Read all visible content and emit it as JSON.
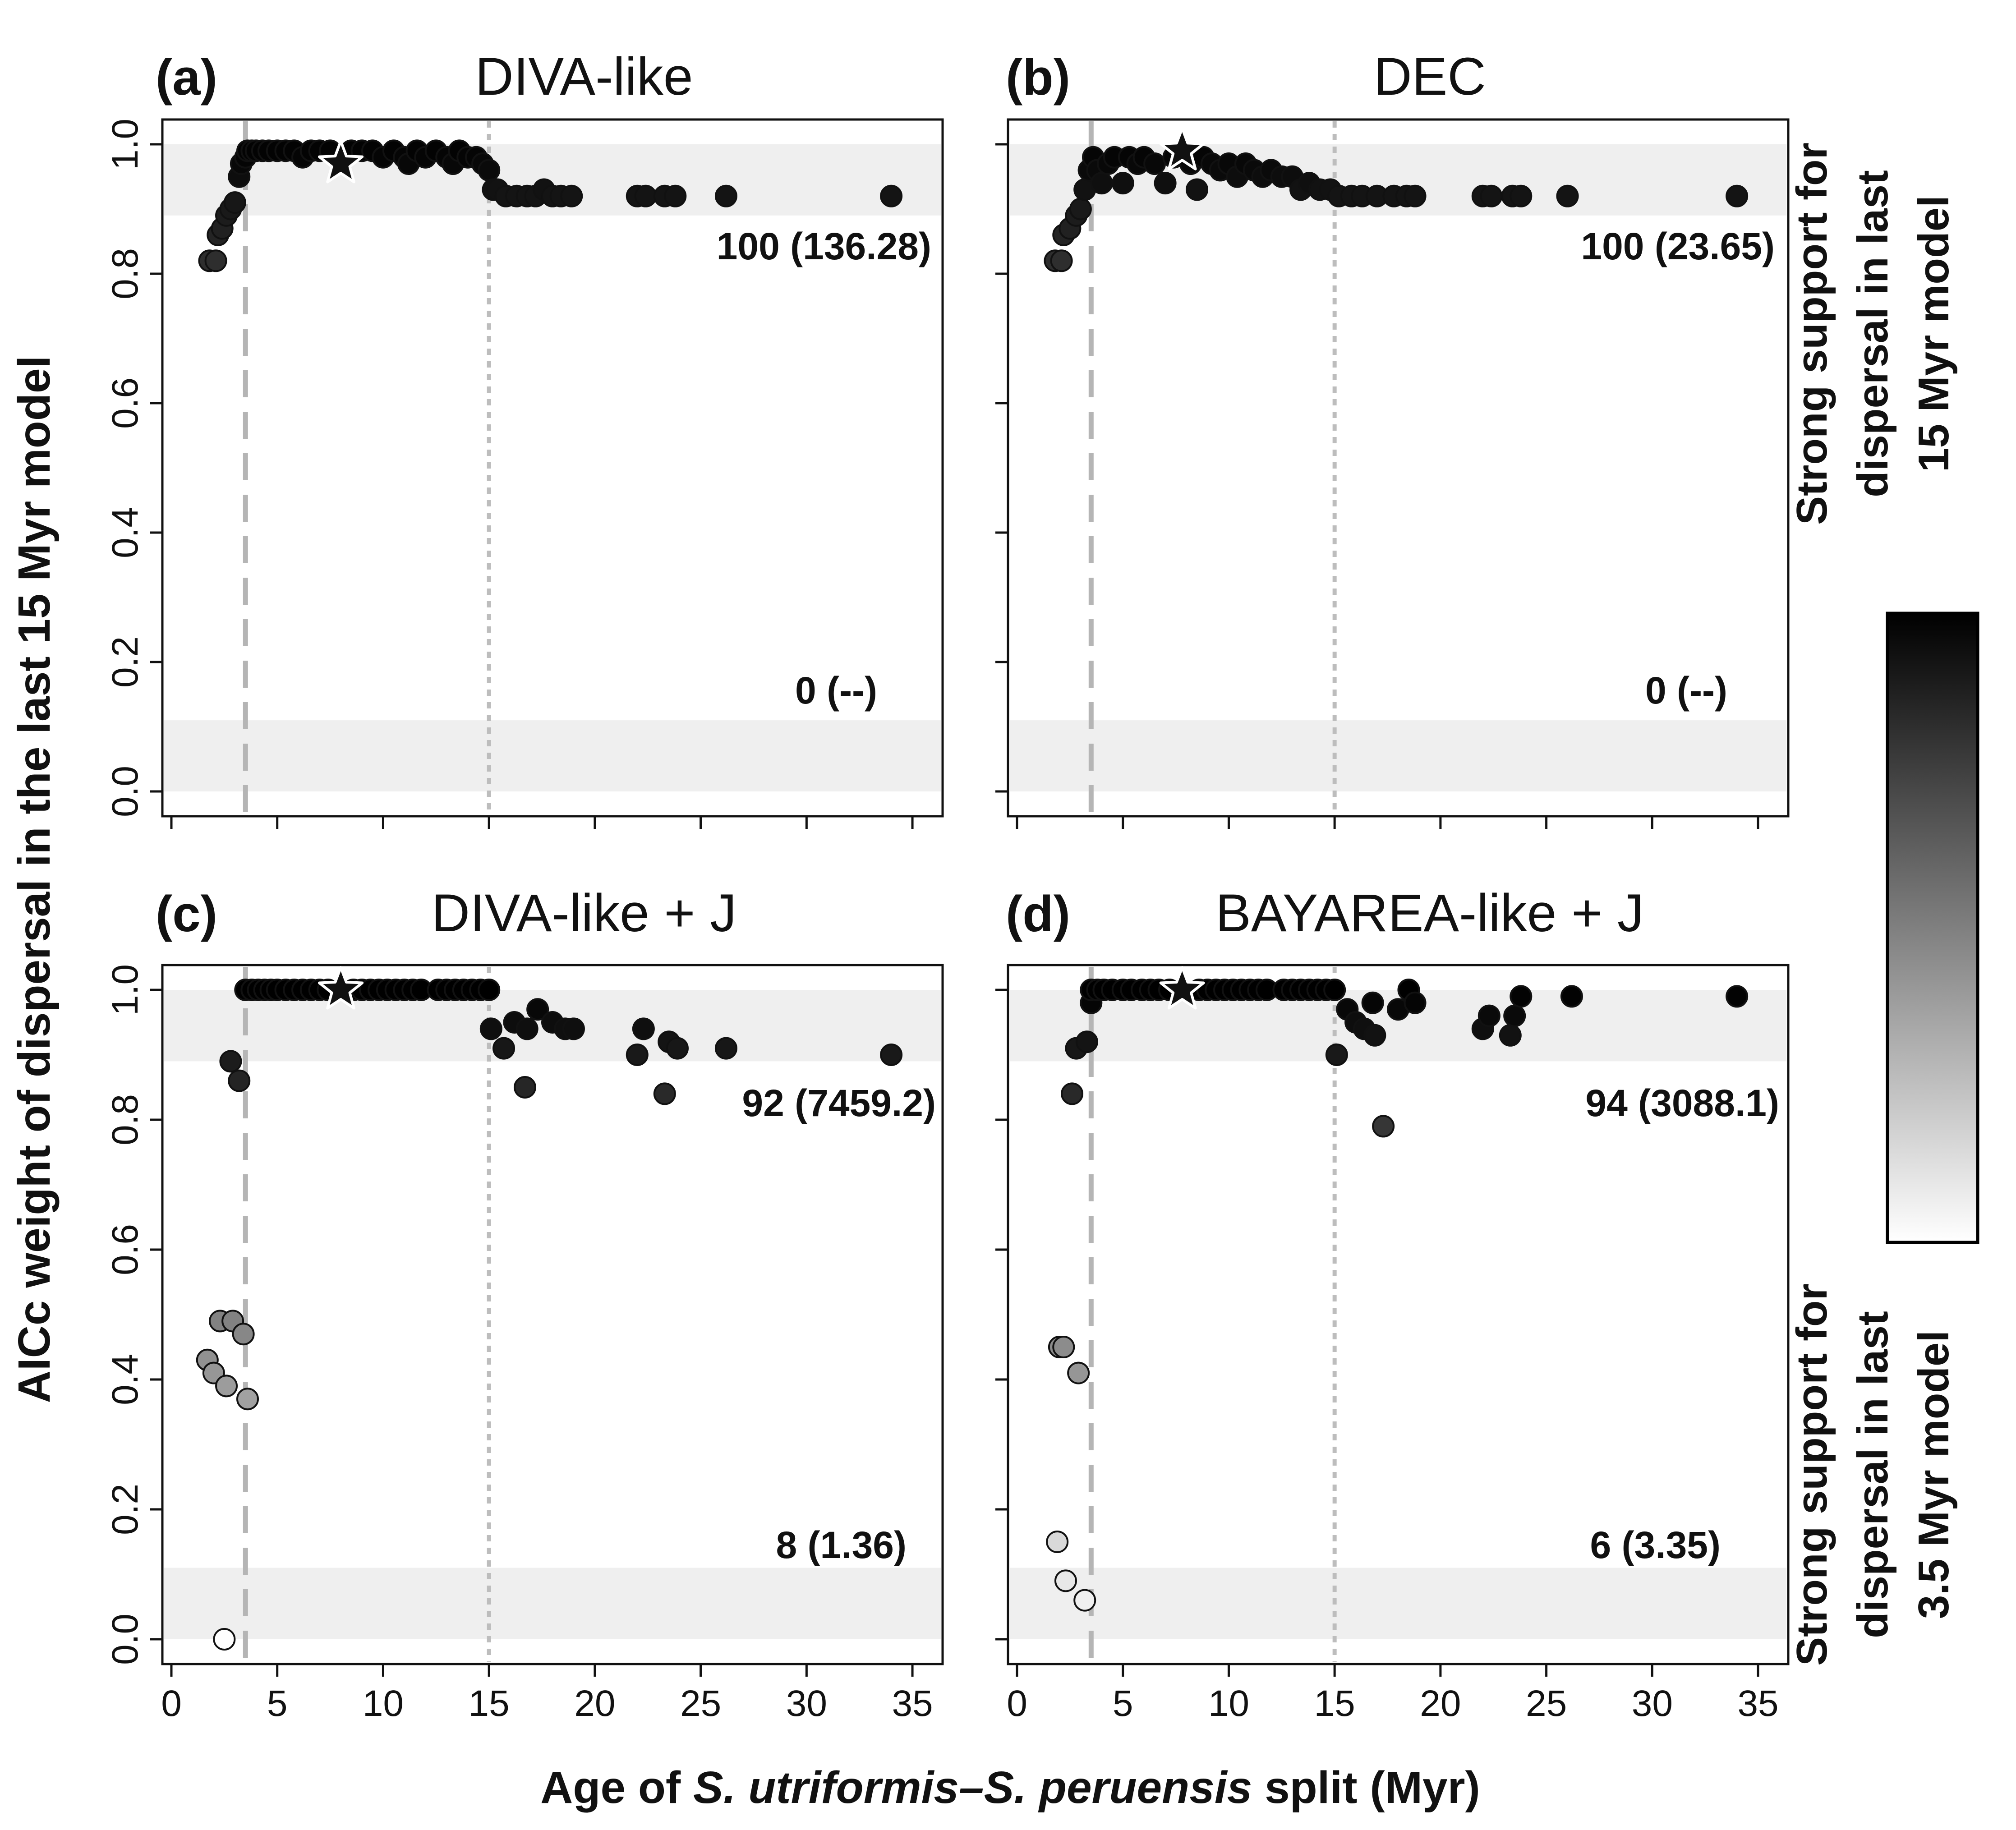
{
  "chart_data": {
    "type": "scatter",
    "ylabel": "AICc weight of dispersal in the last 15 Myr model",
    "xlabel": {
      "prefix": "Age of ",
      "italic": "S. utriformis–S. peruensis",
      "suffix": " split (Myr)"
    },
    "xlim": [
      0,
      36
    ],
    "ylim": [
      0,
      1
    ],
    "x_ticks": [
      "0",
      "5",
      "10",
      "15",
      "20",
      "25",
      "30",
      "35"
    ],
    "y_ticks": [
      "0.0",
      "0.2",
      "0.4",
      "0.6",
      "0.8",
      "1.0"
    ],
    "x_tick_values": [
      0,
      5,
      10,
      15,
      20,
      25,
      30,
      35
    ],
    "y_tick_values": [
      0,
      0.2,
      0.4,
      0.6,
      0.8,
      1.0
    ],
    "reference_lines": [
      {
        "x": 3.5,
        "style": "long-dash",
        "meaning": "3.5 Myr"
      },
      {
        "x": 15,
        "style": "dotted",
        "meaning": "15 Myr"
      }
    ],
    "shaded_bands": [
      [
        0,
        0.11
      ],
      [
        0.89,
        1.0
      ]
    ],
    "legend": {
      "top": "Strong support for dispersal in last 15 Myr model",
      "top_lines": [
        "Strong support for",
        "dispersal in last",
        "15 Myr model"
      ],
      "bottom": "Strong support for dispersal in last 3.5 Myr model",
      "bottom_lines": [
        "Strong support for",
        "dispersal in last",
        "3.5 Myr model"
      ],
      "colorscale": [
        "#ffffff",
        "#000000"
      ]
    },
    "panels": [
      {
        "letter": "(a)",
        "title": "DIVA-like",
        "count_top": "100 (136.28)",
        "count_bottom": "0 (--)",
        "star": [
          8.0,
          0.97
        ],
        "points": [
          [
            1.8,
            0.82
          ],
          [
            2.1,
            0.82
          ],
          [
            2.2,
            0.86
          ],
          [
            2.4,
            0.87
          ],
          [
            2.6,
            0.89
          ],
          [
            2.8,
            0.9
          ],
          [
            3.0,
            0.91
          ],
          [
            3.2,
            0.95
          ],
          [
            3.3,
            0.97
          ],
          [
            3.5,
            0.98
          ],
          [
            3.6,
            0.99
          ],
          [
            3.8,
            0.99
          ],
          [
            4.0,
            0.99
          ],
          [
            4.3,
            0.99
          ],
          [
            4.6,
            0.99
          ],
          [
            5.0,
            0.99
          ],
          [
            5.4,
            0.99
          ],
          [
            5.8,
            0.99
          ],
          [
            6.2,
            0.98
          ],
          [
            6.6,
            0.99
          ],
          [
            7.0,
            0.99
          ],
          [
            7.5,
            0.99
          ],
          [
            8.5,
            0.99
          ],
          [
            9.0,
            0.99
          ],
          [
            9.5,
            0.99
          ],
          [
            10.0,
            0.98
          ],
          [
            10.5,
            0.99
          ],
          [
            11.0,
            0.98
          ],
          [
            11.2,
            0.97
          ],
          [
            11.6,
            0.99
          ],
          [
            12.0,
            0.98
          ],
          [
            12.5,
            0.99
          ],
          [
            13.0,
            0.98
          ],
          [
            13.3,
            0.97
          ],
          [
            13.6,
            0.99
          ],
          [
            14.0,
            0.98
          ],
          [
            14.4,
            0.98
          ],
          [
            14.7,
            0.97
          ],
          [
            15.0,
            0.96
          ],
          [
            15.2,
            0.93
          ],
          [
            15.4,
            0.93
          ],
          [
            15.8,
            0.92
          ],
          [
            16.3,
            0.92
          ],
          [
            16.8,
            0.92
          ],
          [
            17.2,
            0.92
          ],
          [
            17.6,
            0.93
          ],
          [
            18.0,
            0.92
          ],
          [
            18.4,
            0.92
          ],
          [
            18.9,
            0.92
          ],
          [
            22.0,
            0.92
          ],
          [
            22.4,
            0.92
          ],
          [
            23.3,
            0.92
          ],
          [
            23.8,
            0.92
          ],
          [
            26.2,
            0.92
          ],
          [
            34.0,
            0.92
          ]
        ]
      },
      {
        "letter": "(b)",
        "title": "DEC",
        "count_top": "100 (23.65)",
        "count_bottom": "0 (--)",
        "star": [
          7.8,
          0.99
        ],
        "points": [
          [
            1.8,
            0.82
          ],
          [
            2.1,
            0.82
          ],
          [
            2.2,
            0.86
          ],
          [
            2.5,
            0.87
          ],
          [
            2.8,
            0.89
          ],
          [
            3.0,
            0.9
          ],
          [
            3.2,
            0.93
          ],
          [
            3.4,
            0.96
          ],
          [
            3.6,
            0.98
          ],
          [
            3.8,
            0.96
          ],
          [
            4.0,
            0.94
          ],
          [
            4.3,
            0.97
          ],
          [
            4.6,
            0.98
          ],
          [
            5.0,
            0.94
          ],
          [
            5.3,
            0.98
          ],
          [
            5.7,
            0.97
          ],
          [
            6.0,
            0.98
          ],
          [
            6.5,
            0.97
          ],
          [
            7.0,
            0.94
          ],
          [
            7.4,
            0.98
          ],
          [
            8.2,
            0.97
          ],
          [
            8.5,
            0.93
          ],
          [
            8.8,
            0.98
          ],
          [
            9.2,
            0.97
          ],
          [
            9.6,
            0.96
          ],
          [
            10.0,
            0.97
          ],
          [
            10.4,
            0.95
          ],
          [
            10.8,
            0.97
          ],
          [
            11.2,
            0.96
          ],
          [
            11.6,
            0.95
          ],
          [
            12.0,
            0.96
          ],
          [
            12.5,
            0.95
          ],
          [
            13.0,
            0.95
          ],
          [
            13.4,
            0.93
          ],
          [
            13.8,
            0.94
          ],
          [
            14.3,
            0.93
          ],
          [
            14.8,
            0.93
          ],
          [
            15.2,
            0.92
          ],
          [
            15.8,
            0.92
          ],
          [
            16.3,
            0.92
          ],
          [
            17.0,
            0.92
          ],
          [
            17.8,
            0.92
          ],
          [
            18.4,
            0.92
          ],
          [
            18.8,
            0.92
          ],
          [
            22.0,
            0.92
          ],
          [
            22.4,
            0.92
          ],
          [
            23.4,
            0.92
          ],
          [
            23.8,
            0.92
          ],
          [
            26.0,
            0.92
          ],
          [
            34.0,
            0.92
          ]
        ]
      },
      {
        "letter": "(c)",
        "title": "DIVA-like + J",
        "count_top": "92 (7459.2)",
        "count_bottom": "8 (1.36)",
        "star": [
          8.0,
          1.0
        ],
        "points": [
          [
            1.7,
            0.43
          ],
          [
            2.0,
            0.41
          ],
          [
            2.3,
            0.49
          ],
          [
            2.5,
            0.0
          ],
          [
            2.6,
            0.39
          ],
          [
            2.8,
            0.89
          ],
          [
            2.9,
            0.49
          ],
          [
            3.2,
            0.86
          ],
          [
            3.4,
            0.47
          ],
          [
            3.6,
            0.37
          ],
          [
            3.5,
            1.0
          ],
          [
            3.8,
            1.0
          ],
          [
            4.1,
            1.0
          ],
          [
            4.4,
            1.0
          ],
          [
            4.7,
            1.0
          ],
          [
            5.0,
            1.0
          ],
          [
            5.4,
            1.0
          ],
          [
            5.8,
            1.0
          ],
          [
            6.2,
            1.0
          ],
          [
            6.6,
            1.0
          ],
          [
            7.0,
            1.0
          ],
          [
            7.4,
            1.0
          ],
          [
            8.6,
            1.0
          ],
          [
            9.0,
            1.0
          ],
          [
            9.4,
            1.0
          ],
          [
            9.8,
            1.0
          ],
          [
            10.2,
            1.0
          ],
          [
            10.6,
            1.0
          ],
          [
            11.0,
            1.0
          ],
          [
            11.4,
            1.0
          ],
          [
            11.8,
            1.0
          ],
          [
            12.6,
            1.0
          ],
          [
            13.0,
            1.0
          ],
          [
            13.4,
            1.0
          ],
          [
            13.8,
            1.0
          ],
          [
            14.2,
            1.0
          ],
          [
            14.6,
            1.0
          ],
          [
            15.0,
            1.0
          ],
          [
            15.1,
            0.94
          ],
          [
            15.7,
            0.91
          ],
          [
            16.2,
            0.95
          ],
          [
            16.7,
            0.85
          ],
          [
            16.8,
            0.94
          ],
          [
            17.3,
            0.97
          ],
          [
            18.0,
            0.95
          ],
          [
            18.6,
            0.94
          ],
          [
            19.0,
            0.94
          ],
          [
            22.0,
            0.9
          ],
          [
            22.3,
            0.94
          ],
          [
            23.3,
            0.84
          ],
          [
            23.5,
            0.92
          ],
          [
            23.9,
            0.91
          ],
          [
            26.2,
            0.91
          ],
          [
            34.0,
            0.9
          ]
        ]
      },
      {
        "letter": "(d)",
        "title": "BAYAREA-like + J",
        "count_top": "94 (3088.1)",
        "count_bottom": "6 (3.35)",
        "star": [
          7.8,
          1.0
        ],
        "points": [
          [
            1.9,
            0.15
          ],
          [
            2.0,
            0.45
          ],
          [
            2.2,
            0.45
          ],
          [
            2.3,
            0.09
          ],
          [
            2.6,
            0.84
          ],
          [
            2.8,
            0.91
          ],
          [
            2.9,
            0.41
          ],
          [
            3.3,
            0.92
          ],
          [
            3.2,
            0.06
          ],
          [
            3.5,
            0.98
          ],
          [
            3.5,
            1.0
          ],
          [
            3.8,
            1.0
          ],
          [
            4.1,
            1.0
          ],
          [
            4.5,
            1.0
          ],
          [
            5.0,
            1.0
          ],
          [
            5.4,
            1.0
          ],
          [
            5.9,
            1.0
          ],
          [
            6.3,
            1.0
          ],
          [
            6.7,
            1.0
          ],
          [
            7.2,
            1.0
          ],
          [
            8.6,
            1.0
          ],
          [
            9.0,
            1.0
          ],
          [
            9.4,
            1.0
          ],
          [
            9.8,
            1.0
          ],
          [
            10.2,
            1.0
          ],
          [
            10.6,
            1.0
          ],
          [
            11.0,
            1.0
          ],
          [
            11.4,
            1.0
          ],
          [
            11.8,
            1.0
          ],
          [
            12.6,
            1.0
          ],
          [
            13.0,
            1.0
          ],
          [
            13.4,
            1.0
          ],
          [
            13.8,
            1.0
          ],
          [
            14.2,
            1.0
          ],
          [
            14.6,
            1.0
          ],
          [
            15.0,
            1.0
          ],
          [
            15.1,
            0.9
          ],
          [
            15.6,
            0.97
          ],
          [
            16.0,
            0.95
          ],
          [
            16.4,
            0.94
          ],
          [
            16.8,
            0.98
          ],
          [
            16.9,
            0.93
          ],
          [
            17.3,
            0.79
          ],
          [
            18.0,
            0.97
          ],
          [
            18.5,
            1.0
          ],
          [
            18.8,
            0.98
          ],
          [
            22.0,
            0.94
          ],
          [
            22.3,
            0.96
          ],
          [
            23.3,
            0.93
          ],
          [
            23.5,
            0.96
          ],
          [
            23.8,
            0.99
          ],
          [
            26.2,
            0.99
          ],
          [
            34.0,
            0.99
          ]
        ]
      }
    ]
  }
}
